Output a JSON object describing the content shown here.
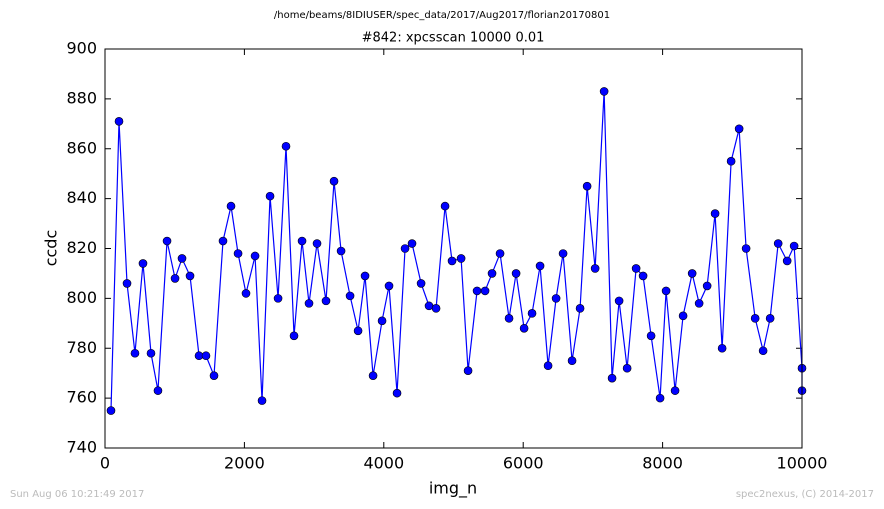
{
  "chart_data": {
    "type": "line",
    "suptitle": "/home/beams/8IDIUSER/spec_data/2017/Aug2017/florian20170801",
    "title": "#842: xpcsscan 10000 0.01",
    "x_label": "img_n",
    "y_label": "ccdc",
    "timestamp": "Sun Aug 06 10:21:49 2017",
    "credit": "spec2nexus, (C) 2014-2017",
    "xlim": [
      0,
      10000
    ],
    "xticks": [
      0,
      2000,
      4000,
      6000,
      8000,
      10000
    ],
    "ylim": [
      740,
      900
    ],
    "yticks": [
      740,
      760,
      780,
      800,
      820,
      840,
      860,
      880,
      900
    ],
    "x": [
      86,
      201,
      316,
      430,
      545,
      660,
      760,
      890,
      1005,
      1105,
      1220,
      1349,
      1449,
      1564,
      1693,
      1808,
      1909,
      2023,
      2153,
      2253,
      2368,
      2483,
      2597,
      2712,
      2827,
      2927,
      3042,
      3171,
      3286,
      3387,
      3516,
      3631,
      3731,
      3846,
      3975,
      4075,
      4190,
      4305,
      4405,
      4535,
      4649,
      4750,
      4879,
      4979,
      5109,
      5209,
      5338,
      5453,
      5553,
      5668,
      5797,
      5898,
      6013,
      6127,
      6242,
      6357,
      6472,
      6572,
      6701,
      6816,
      6917,
      7032,
      7161,
      7275,
      7376,
      7491,
      7620,
      7720,
      7835,
      7964,
      8050,
      8179,
      8294,
      8424,
      8524,
      8639,
      8753,
      8854,
      8983,
      9098,
      9198,
      9328,
      9442,
      9543,
      9658,
      9787,
      9887,
      10000,
      10000
    ],
    "series": [
      {
        "name": "ccdc",
        "color": "#0000ff",
        "values": [
          755,
          871,
          806,
          778,
          814,
          778,
          763,
          823,
          808,
          816,
          809,
          777,
          777,
          769,
          823,
          837,
          818,
          802,
          817,
          759,
          841,
          800,
          861,
          785,
          823,
          798,
          822,
          799,
          847,
          819,
          801,
          787,
          809,
          769,
          791,
          805,
          762,
          820,
          822,
          806,
          797,
          796,
          837,
          815,
          816,
          771,
          803,
          803,
          810,
          818,
          792,
          810,
          788,
          794,
          813,
          773,
          800,
          818,
          775,
          796,
          845,
          812,
          883,
          768,
          799,
          772,
          812,
          809,
          785,
          760,
          803,
          763,
          793,
          810,
          798,
          805,
          834,
          780,
          855,
          868,
          820,
          792,
          779,
          792,
          822,
          815,
          821,
          772,
          763
        ]
      }
    ]
  }
}
